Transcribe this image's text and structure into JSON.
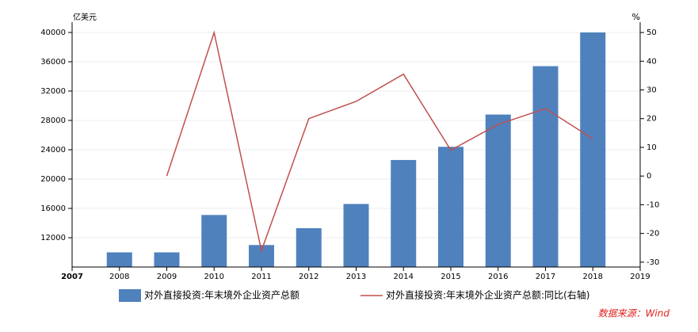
{
  "chart_data": {
    "type": "bar-line",
    "y_label": "亿美元",
    "y2_label": "%",
    "source": "数据来源：Wind",
    "x": [
      2008,
      2009,
      2010,
      2011,
      2012,
      2013,
      2014,
      2015,
      2016,
      2017,
      2018
    ],
    "xlim": [
      2007,
      2019
    ],
    "xticks": [
      2007,
      2008,
      2009,
      2010,
      2011,
      2012,
      2013,
      2014,
      2015,
      2016,
      2017,
      2018,
      2019
    ],
    "ylim": [
      8000,
      41400
    ],
    "yticks": [
      12000,
      16000,
      20000,
      24000,
      28000,
      32000,
      36000,
      40000
    ],
    "y2lim": [
      -31.7,
      53.6
    ],
    "y2ticks": [
      -30,
      -20,
      -10,
      0,
      10,
      20,
      30,
      40,
      50
    ],
    "grid": true,
    "series": [
      {
        "name": "对外直接投资:年末境外企业资产总额",
        "type": "bar",
        "color": "#4f81bd",
        "values": [
          10000,
          10000,
          15100,
          11000,
          13300,
          16600,
          22600,
          24400,
          28800,
          35400,
          40000
        ]
      },
      {
        "name": "对外直接投资:年末境外企业资产总额:同比(右轴)",
        "type": "line",
        "axis": "y2",
        "color": "#c0504d",
        "values": [
          null,
          0,
          50,
          -26,
          20,
          26,
          35.5,
          9,
          18,
          23.5,
          13
        ]
      }
    ]
  }
}
